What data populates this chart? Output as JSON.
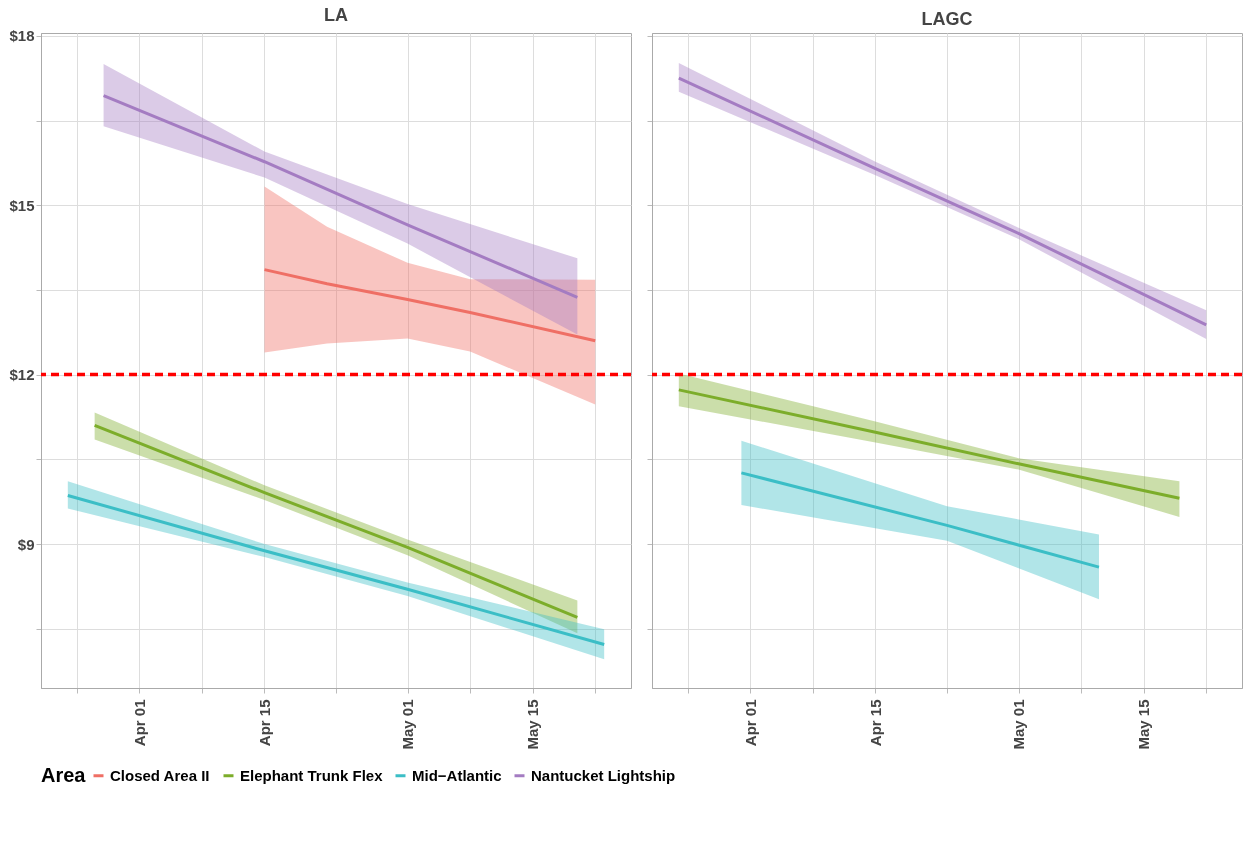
{
  "chart_data": [
    {
      "type": "line",
      "title": "LA",
      "legend": "bottom",
      "legend_title": "Area",
      "grid": true,
      "xlim": [
        "--03-21",
        "--05-26"
      ],
      "ylim": [
        6.45,
        18.05
      ],
      "xticks": [
        {
          "value": "--03-25",
          "label": null
        },
        {
          "value": "--04-01",
          "label": "Apr 01"
        },
        {
          "value": "--04-08",
          "label": null
        },
        {
          "value": "--04-15",
          "label": "Apr 15"
        },
        {
          "value": "--04-23",
          "label": null
        },
        {
          "value": "--05-01",
          "label": "May 01"
        },
        {
          "value": "--05-08",
          "label": null
        },
        {
          "value": "--05-15",
          "label": "May 15"
        },
        {
          "value": "--05-22",
          "label": null
        }
      ],
      "yticks": [
        {
          "value": 7.5,
          "label": null
        },
        {
          "value": 9,
          "label": "$9"
        },
        {
          "value": 10.5,
          "label": null
        },
        {
          "value": 12,
          "label": "$12"
        },
        {
          "value": 13.5,
          "label": null
        },
        {
          "value": 15,
          "label": "$15"
        },
        {
          "value": 16.5,
          "label": null
        },
        {
          "value": 18,
          "label": "$18"
        }
      ],
      "ref_lines": [
        {
          "axis": "y",
          "value": 12,
          "color": "#ff0000",
          "line_style": "dashed"
        }
      ],
      "series": [
        {
          "name": "Closed Area II",
          "color": "#ef6f65",
          "x": [
            "--04-15",
            "--04-22",
            "--05-01",
            "--05-08",
            "--05-22"
          ],
          "values": [
            13.86,
            13.61,
            13.33,
            13.1,
            12.6
          ],
          "lower": [
            12.39,
            12.55,
            12.64,
            12.41,
            11.47
          ],
          "upper": [
            15.33,
            14.62,
            13.98,
            13.69,
            13.68
          ]
        },
        {
          "name": "Elephant Trunk Flex",
          "color": "#7cad2a",
          "x": [
            "--03-27",
            "--04-15",
            "--05-01",
            "--05-20"
          ],
          "values": [
            11.1,
            9.91,
            8.94,
            7.7
          ],
          "lower": [
            10.85,
            9.78,
            8.8,
            7.42
          ],
          "upper": [
            11.33,
            10.04,
            9.08,
            8.0
          ]
        },
        {
          "name": "Mid−Atlantic",
          "color": "#3bbec6",
          "x": [
            "--03-24",
            "--04-15",
            "--05-01",
            "--05-23"
          ],
          "values": [
            9.86,
            8.88,
            8.2,
            7.22
          ],
          "lower": [
            9.63,
            8.77,
            8.08,
            6.96
          ],
          "upper": [
            10.11,
            9.0,
            8.32,
            7.49
          ]
        },
        {
          "name": "Nantucket Lightship",
          "color": "#a47cc2",
          "x": [
            "--03-28",
            "--04-15",
            "--05-01",
            "--05-20"
          ],
          "values": [
            16.94,
            15.77,
            14.65,
            13.37
          ],
          "lower": [
            16.4,
            15.49,
            14.32,
            12.71
          ],
          "upper": [
            17.5,
            15.95,
            15.02,
            14.06
          ]
        }
      ]
    },
    {
      "type": "line",
      "title": "LAGC",
      "grid": true,
      "tick_labels": "x",
      "xlim": [
        "--03-21",
        "--05-26"
      ],
      "ylim": [
        6.45,
        18.05
      ],
      "xticks": [
        {
          "value": "--03-25",
          "label": null
        },
        {
          "value": "--04-01",
          "label": "Apr 01"
        },
        {
          "value": "--04-08",
          "label": null
        },
        {
          "value": "--04-15",
          "label": "Apr 15"
        },
        {
          "value": "--04-23",
          "label": null
        },
        {
          "value": "--05-01",
          "label": "May 01"
        },
        {
          "value": "--05-08",
          "label": null
        },
        {
          "value": "--05-15",
          "label": "May 15"
        },
        {
          "value": "--05-22",
          "label": null
        }
      ],
      "yticks": [
        {
          "value": 7.5,
          "label": null
        },
        {
          "value": 9,
          "label": null
        },
        {
          "value": 10.5,
          "label": null
        },
        {
          "value": 12,
          "label": null
        },
        {
          "value": 13.5,
          "label": null
        },
        {
          "value": 15,
          "label": null
        },
        {
          "value": 16.5,
          "label": null
        },
        {
          "value": 18,
          "label": null
        }
      ],
      "ref_lines": [
        {
          "axis": "y",
          "value": 12,
          "color": "#ff0000",
          "line_style": "dashed"
        }
      ],
      "series": [
        {
          "name": "Elephant Trunk Flex",
          "color": "#7cad2a",
          "x": [
            "--03-24",
            "--04-15",
            "--05-01",
            "--05-19"
          ],
          "values": [
            11.73,
            10.98,
            10.42,
            9.81
          ],
          "lower": [
            11.44,
            10.8,
            10.32,
            9.48
          ],
          "upper": [
            12.02,
            11.17,
            10.52,
            10.11
          ]
        },
        {
          "name": "Mid−Atlantic",
          "color": "#3bbec6",
          "x": [
            "--03-31",
            "--04-23",
            "--05-10"
          ],
          "values": [
            10.26,
            9.33,
            8.59
          ],
          "lower": [
            9.69,
            9.06,
            8.02
          ],
          "upper": [
            10.83,
            9.67,
            9.17
          ]
        },
        {
          "name": "Nantucket Lightship",
          "color": "#a47cc2",
          "x": [
            "--03-24",
            "--04-15",
            "--05-01",
            "--05-22"
          ],
          "values": [
            17.25,
            15.65,
            14.5,
            12.88
          ],
          "lower": [
            17.01,
            15.53,
            14.4,
            12.63
          ],
          "upper": [
            17.52,
            15.77,
            14.6,
            13.14
          ]
        }
      ]
    }
  ]
}
